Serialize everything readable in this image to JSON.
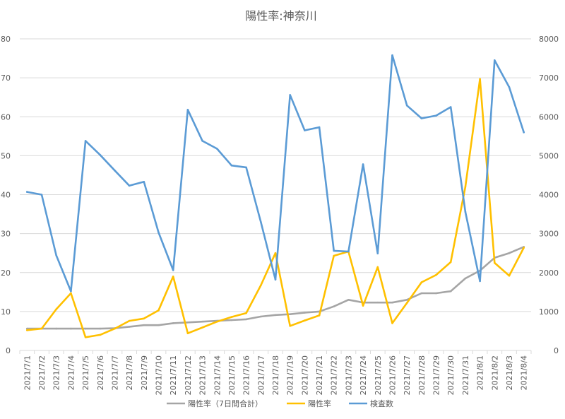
{
  "chart_data": {
    "type": "line",
    "title": "陽性率:神奈川",
    "categories": [
      "2021/7/1",
      "2021/7/2",
      "2021/7/3",
      "2021/7/4",
      "2021/7/5",
      "2021/7/6",
      "2021/7/7",
      "2021/7/8",
      "2021/7/9",
      "2021/7/10",
      "2021/7/11",
      "2021/7/12",
      "2021/7/13",
      "2021/7/14",
      "2021/7/15",
      "2021/7/16",
      "2021/7/17",
      "2021/7/18",
      "2021/7/19",
      "2021/7/20",
      "2021/7/21",
      "2021/7/22",
      "2021/7/23",
      "2021/7/24",
      "2021/7/25",
      "2021/7/26",
      "2021/7/27",
      "2021/7/28",
      "2021/7/29",
      "2021/7/30",
      "2021/7/31",
      "2021/8/1",
      "2021/8/2",
      "2021/8/3",
      "2021/8/4"
    ],
    "y_left": {
      "ylim": [
        0,
        80
      ],
      "ticks": [
        0,
        10,
        20,
        30,
        40,
        50,
        60,
        70,
        80
      ]
    },
    "y_right": {
      "ylim": [
        0,
        8000
      ],
      "ticks": [
        0,
        1000,
        2000,
        3000,
        4000,
        5000,
        6000,
        7000,
        8000
      ]
    },
    "grid": true,
    "legend_position": "bottom",
    "series": [
      {
        "name": "陽性率（7日間合計）",
        "axis": "left",
        "color": "#a5a5a5",
        "values": [
          5.6,
          5.6,
          5.6,
          5.6,
          5.6,
          5.6,
          5.7,
          6.1,
          6.5,
          6.5,
          7.0,
          7.2,
          7.4,
          7.6,
          7.8,
          8.0,
          8.7,
          9.1,
          9.3,
          9.7,
          10.0,
          11.3,
          13.0,
          12.3,
          12.3,
          12.3,
          13.0,
          14.7,
          14.7,
          15.2,
          18.5,
          20.5,
          23.8,
          25.0,
          26.6
        ]
      },
      {
        "name": "陽性率",
        "axis": "left",
        "color": "#ffc000",
        "values": [
          5.2,
          5.6,
          10.6,
          14.7,
          3.4,
          4.0,
          5.6,
          7.6,
          8.2,
          10.3,
          19.0,
          4.4,
          5.9,
          7.4,
          8.6,
          9.6,
          16.7,
          25.0,
          6.3,
          7.7,
          9.0,
          24.3,
          25.4,
          11.5,
          21.4,
          7.0,
          12.2,
          17.5,
          19.4,
          22.7,
          42.0,
          69.7,
          22.5,
          19.2,
          26.4
        ]
      },
      {
        "name": "検査数",
        "axis": "right",
        "color": "#5b9bd5",
        "values": [
          4070,
          4000,
          2440,
          1520,
          5380,
          5020,
          4620,
          4230,
          4330,
          3030,
          2060,
          6180,
          5380,
          5180,
          4750,
          4700,
          3300,
          1820,
          6560,
          5650,
          5730,
          2560,
          2540,
          4780,
          2490,
          7580,
          6290,
          5960,
          6030,
          6250,
          3560,
          1780,
          7450,
          6760,
          5600
        ]
      }
    ]
  }
}
